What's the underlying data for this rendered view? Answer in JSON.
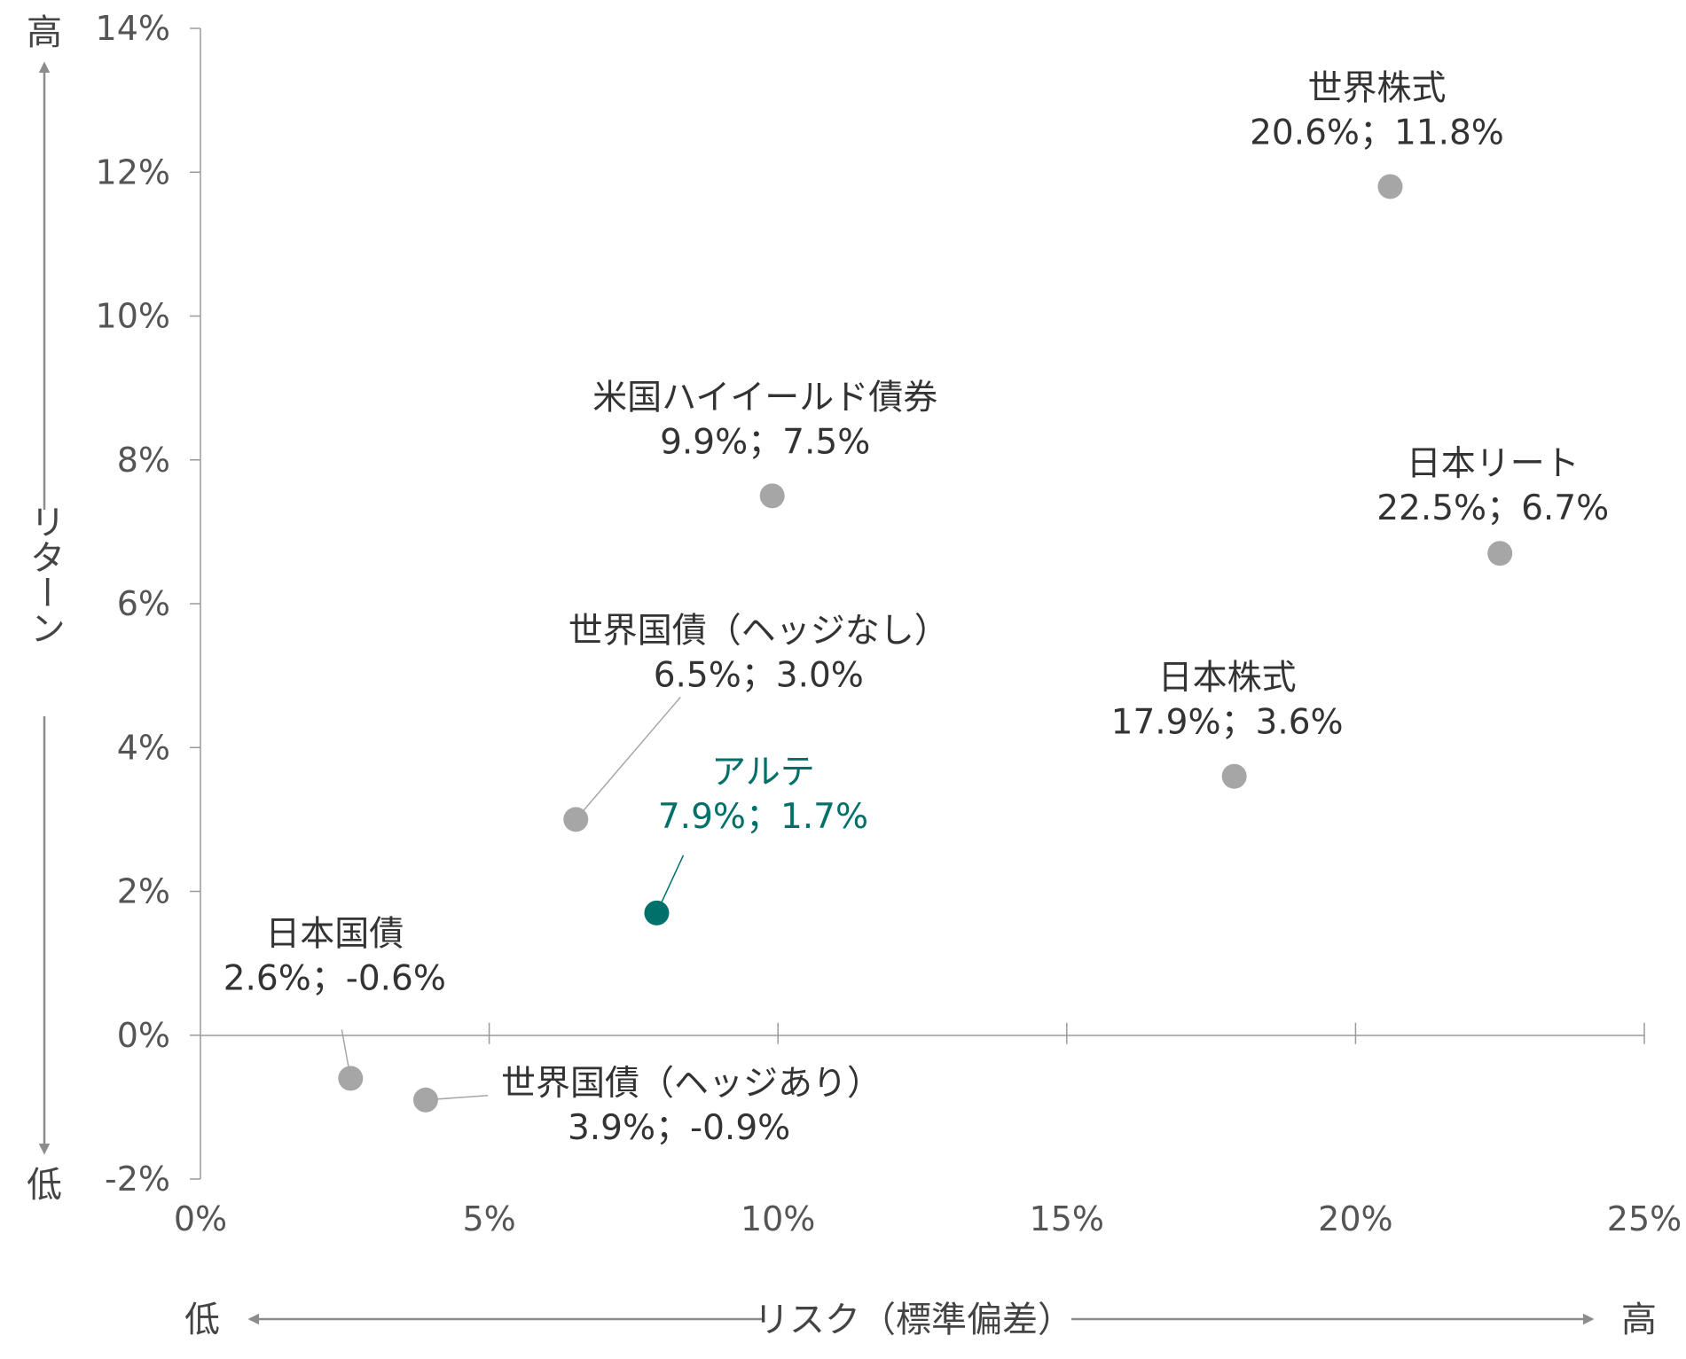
{
  "chart_data": {
    "type": "scatter",
    "x_axis": {
      "label": "リスク（標準偏差）",
      "low_label": "低",
      "high_label": "高",
      "range": [
        0,
        25
      ],
      "ticks": [
        0,
        5,
        10,
        15,
        20,
        25
      ],
      "tick_labels": [
        "0%",
        "5%",
        "10%",
        "15%",
        "20%",
        "25%"
      ]
    },
    "y_axis": {
      "label": "リターン",
      "low_label": "低",
      "high_label": "高",
      "range": [
        -2,
        14
      ],
      "ticks": [
        -2,
        0,
        2,
        4,
        6,
        8,
        10,
        12,
        14
      ],
      "tick_labels": [
        "-2%",
        "0%",
        "2%",
        "4%",
        "6%",
        "8%",
        "10%",
        "12%",
        "14%"
      ]
    },
    "grid": false,
    "points": [
      {
        "name": "世界株式",
        "x": 20.6,
        "y": 11.8,
        "label": "20.6%；11.8%",
        "color": "#a6a6a6"
      },
      {
        "name": "米国ハイイールド債券",
        "x": 9.9,
        "y": 7.5,
        "label": "9.9%；7.5%",
        "color": "#a6a6a6"
      },
      {
        "name": "日本リート",
        "x": 22.5,
        "y": 6.7,
        "label": "22.5%；6.7%",
        "color": "#a6a6a6"
      },
      {
        "name": "世界国債（ヘッジなし）",
        "x": 6.5,
        "y": 3.0,
        "label": "6.5%；3.0%",
        "color": "#a6a6a6"
      },
      {
        "name": "日本株式",
        "x": 17.9,
        "y": 3.6,
        "label": "17.9%；3.6%",
        "color": "#a6a6a6"
      },
      {
        "name": "アルテ",
        "x": 7.9,
        "y": 1.7,
        "label": "7.9%；1.7%",
        "color": "#00706b",
        "highlight": true
      },
      {
        "name": "日本国債",
        "x": 2.6,
        "y": -0.6,
        "label": "2.6%；-0.6%",
        "color": "#a6a6a6"
      },
      {
        "name": "世界国債（ヘッジあり）",
        "x": 3.9,
        "y": -0.9,
        "label": "3.9%；-0.9%",
        "color": "#a6a6a6"
      }
    ]
  }
}
